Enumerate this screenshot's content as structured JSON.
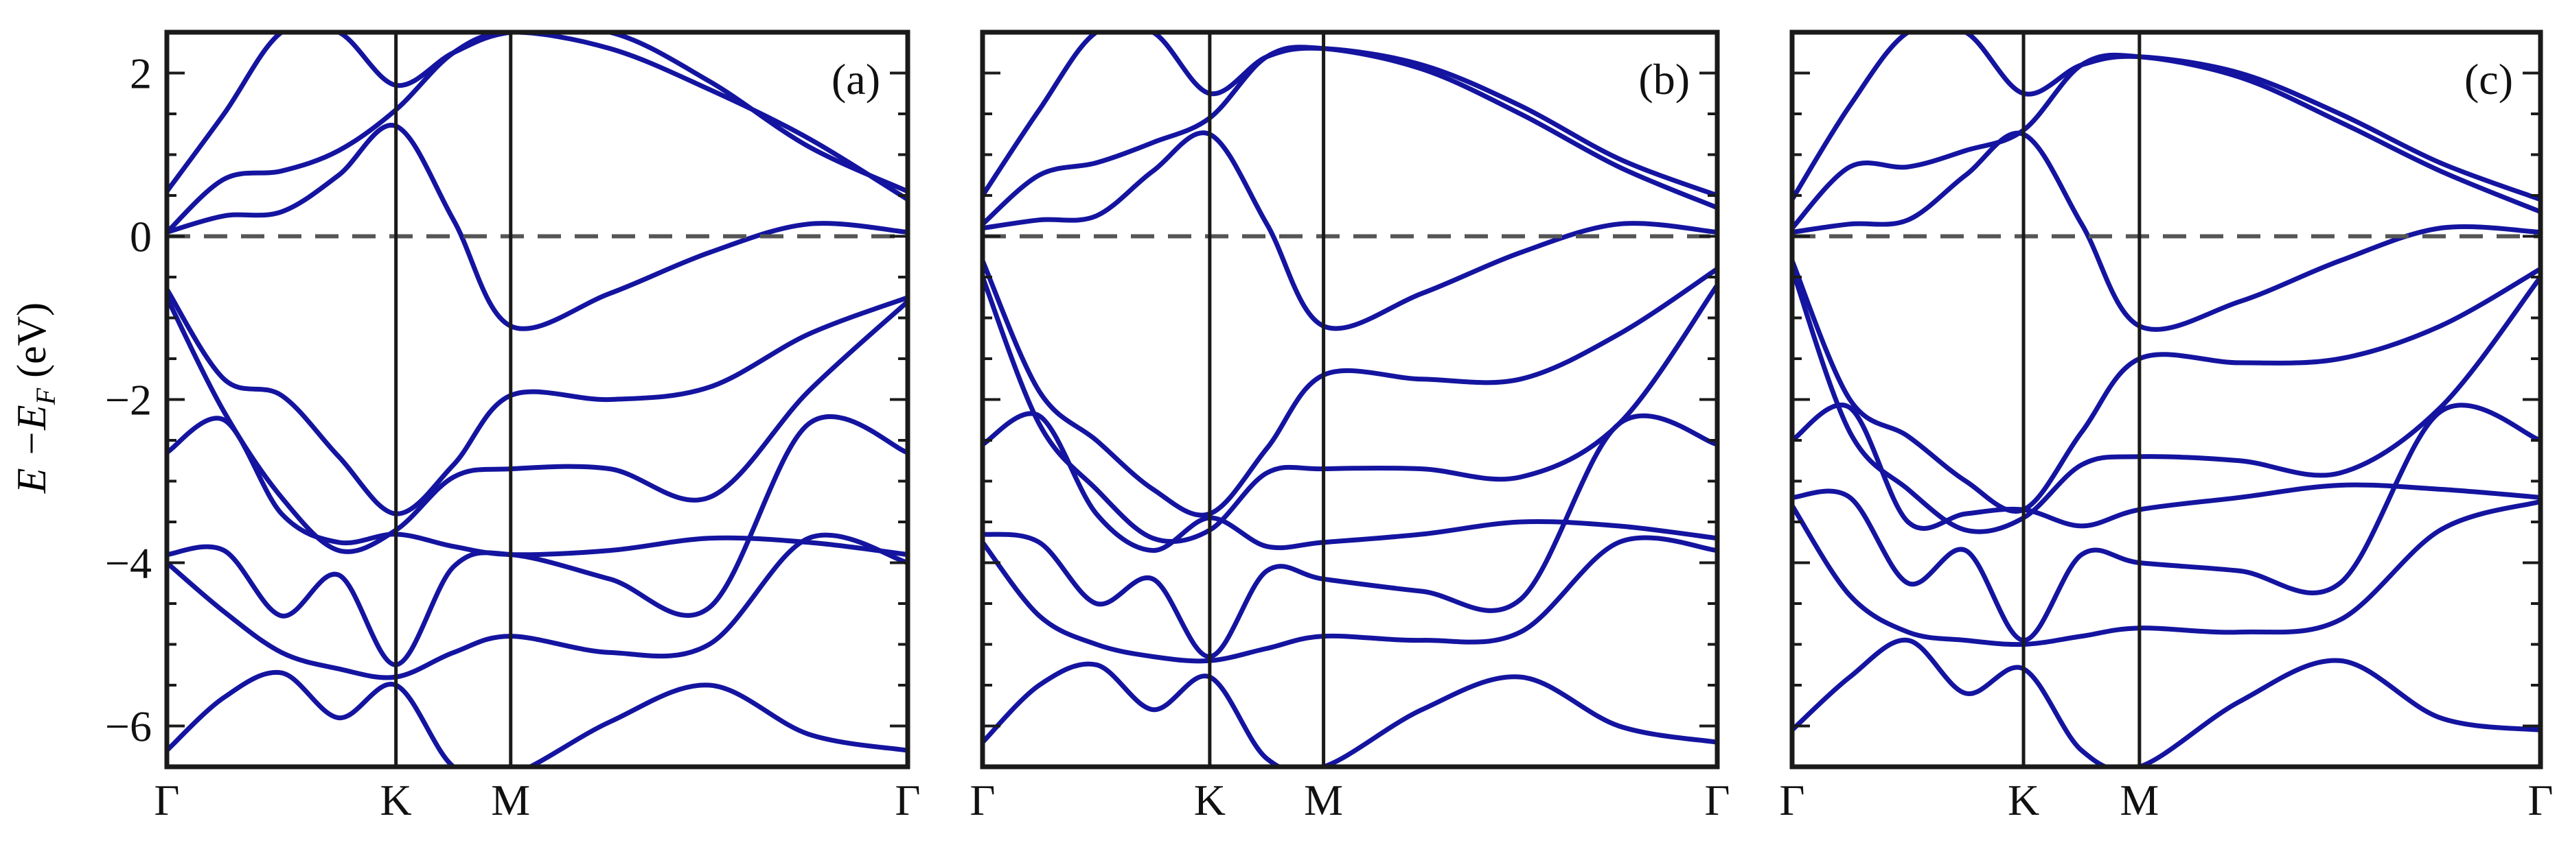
{
  "figure": {
    "ylabel_main": "E −E",
    "ylabel_sub": "F",
    "ylabel_unit": " (eV)"
  },
  "chart_data": [
    {
      "type": "line",
      "panel_label": "(a)",
      "x_ticks": [
        {
          "pos": 0,
          "label": "Γ"
        },
        {
          "pos": 0.577,
          "label": "K"
        },
        {
          "pos": 0.866,
          "label": "M"
        },
        {
          "pos": 1.866,
          "label": "Γ"
        }
      ],
      "xlim": [
        0,
        1.866
      ],
      "ylim": [
        -6.5,
        2.5
      ],
      "y_ticks": [
        2,
        0,
        -2,
        -4,
        -6
      ],
      "y_tick_labels": [
        "2",
        "0",
        "−2",
        "−4",
        "−6"
      ],
      "fermi_level": 0,
      "line_color": "#1414a0",
      "fermi_color": "#555555",
      "x": [
        0,
        0.144,
        0.289,
        0.433,
        0.577,
        0.722,
        0.866,
        1.116,
        1.366,
        1.616,
        1.866
      ],
      "bands": [
        [
          0.55,
          1.5,
          2.5,
          2.5,
          1.85,
          2.25,
          2.5,
          2.5,
          1.9,
          1.1,
          0.55
        ],
        [
          0.05,
          0.7,
          0.8,
          1.05,
          1.55,
          2.25,
          2.5,
          2.3,
          1.8,
          1.2,
          0.45
        ],
        [
          0.05,
          0.25,
          0.3,
          0.75,
          1.35,
          0.2,
          -1.1,
          -0.7,
          -0.2,
          0.15,
          0.05
        ],
        [
          -0.65,
          -1.75,
          -1.95,
          -2.7,
          -3.4,
          -2.8,
          -1.95,
          -2.0,
          -1.85,
          -1.2,
          -0.75
        ],
        [
          -0.75,
          -2.15,
          -3.2,
          -3.85,
          -3.6,
          -2.95,
          -2.85,
          -2.85,
          -3.2,
          -1.9,
          -0.8
        ],
        [
          -2.65,
          -2.25,
          -3.4,
          -3.75,
          -3.65,
          -3.8,
          -3.9,
          -3.85,
          -3.7,
          -3.75,
          -3.9
        ],
        [
          -3.9,
          -3.85,
          -4.65,
          -4.15,
          -5.25,
          -4.05,
          -3.9,
          -4.2,
          -4.55,
          -2.3,
          -2.65
        ],
        [
          -4.0,
          -4.6,
          -5.1,
          -5.3,
          -5.4,
          -5.1,
          -4.9,
          -5.1,
          -5.0,
          -3.7,
          -4.0
        ],
        [
          -6.3,
          -5.65,
          -5.35,
          -5.9,
          -5.5,
          -6.5,
          -6.6,
          -5.95,
          -5.5,
          -6.1,
          -6.3
        ]
      ]
    },
    {
      "type": "line",
      "panel_label": "(b)",
      "x_ticks": [
        {
          "pos": 0,
          "label": "Γ"
        },
        {
          "pos": 0.577,
          "label": "K"
        },
        {
          "pos": 0.866,
          "label": "M"
        },
        {
          "pos": 1.866,
          "label": "Γ"
        }
      ],
      "xlim": [
        0,
        1.866
      ],
      "ylim": [
        -6.5,
        2.5
      ],
      "y_ticks": [
        2,
        0,
        -2,
        -4,
        -6
      ],
      "y_tick_labels": [
        "2",
        "0",
        "−2",
        "−4",
        "−6"
      ],
      "fermi_level": 0,
      "line_color": "#1414a0",
      "fermi_color": "#555555",
      "x": [
        0,
        0.144,
        0.289,
        0.433,
        0.577,
        0.722,
        0.866,
        1.116,
        1.366,
        1.616,
        1.866
      ],
      "bands": [
        [
          0.5,
          1.55,
          2.5,
          2.5,
          1.75,
          2.2,
          2.3,
          2.1,
          1.6,
          0.95,
          0.5
        ],
        [
          0.15,
          0.75,
          0.9,
          1.15,
          1.45,
          2.2,
          2.3,
          2.05,
          1.5,
          0.85,
          0.35
        ],
        [
          0.1,
          0.2,
          0.25,
          0.8,
          1.25,
          0.15,
          -1.1,
          -0.7,
          -0.2,
          0.15,
          0.05
        ],
        [
          -0.3,
          -1.9,
          -2.5,
          -3.1,
          -3.4,
          -2.6,
          -1.7,
          -1.75,
          -1.75,
          -1.2,
          -0.4
        ],
        [
          -0.5,
          -2.3,
          -3.1,
          -3.7,
          -3.6,
          -2.9,
          -2.85,
          -2.85,
          -2.95,
          -2.3,
          -0.6
        ],
        [
          -2.55,
          -2.2,
          -3.4,
          -3.85,
          -3.45,
          -3.8,
          -3.75,
          -3.65,
          -3.5,
          -3.55,
          -3.7
        ],
        [
          -3.65,
          -3.75,
          -4.5,
          -4.2,
          -5.15,
          -4.1,
          -4.2,
          -4.35,
          -4.45,
          -2.3,
          -2.55
        ],
        [
          -3.75,
          -4.65,
          -5.0,
          -5.15,
          -5.2,
          -5.05,
          -4.9,
          -4.95,
          -4.85,
          -3.75,
          -3.85
        ],
        [
          -6.2,
          -5.5,
          -5.25,
          -5.8,
          -5.4,
          -6.4,
          -6.5,
          -5.8,
          -5.4,
          -6.0,
          -6.2
        ]
      ]
    },
    {
      "type": "line",
      "panel_label": "(c)",
      "x_ticks": [
        {
          "pos": 0,
          "label": "Γ"
        },
        {
          "pos": 0.577,
          "label": "K"
        },
        {
          "pos": 0.866,
          "label": "M"
        },
        {
          "pos": 1.866,
          "label": "Γ"
        }
      ],
      "xlim": [
        0,
        1.866
      ],
      "ylim": [
        -6.5,
        2.5
      ],
      "y_ticks": [
        2,
        0,
        -2,
        -4,
        -6
      ],
      "y_tick_labels": [
        "2",
        "0",
        "−2",
        "−4",
        "−6"
      ],
      "fermi_level": 0,
      "line_color": "#1414a0",
      "fermi_color": "#555555",
      "x": [
        0,
        0.144,
        0.289,
        0.433,
        0.577,
        0.722,
        0.866,
        1.116,
        1.366,
        1.616,
        1.866
      ],
      "bands": [
        [
          0.45,
          1.6,
          2.5,
          2.5,
          1.75,
          2.1,
          2.2,
          2.0,
          1.5,
          0.9,
          0.45
        ],
        [
          0.1,
          0.85,
          0.85,
          1.05,
          1.3,
          2.1,
          2.2,
          1.95,
          1.4,
          0.8,
          0.3
        ],
        [
          0.05,
          0.15,
          0.2,
          0.75,
          1.25,
          0.15,
          -1.1,
          -0.8,
          -0.3,
          0.1,
          0.05
        ],
        [
          -0.3,
          -2.0,
          -2.45,
          -3.0,
          -3.35,
          -2.4,
          -1.5,
          -1.55,
          -1.5,
          -1.1,
          -0.4
        ],
        [
          -0.4,
          -2.4,
          -3.1,
          -3.6,
          -3.45,
          -2.8,
          -2.7,
          -2.75,
          -2.9,
          -2.1,
          -0.5
        ],
        [
          -2.5,
          -2.1,
          -3.5,
          -3.4,
          -3.35,
          -3.55,
          -3.35,
          -3.2,
          -3.05,
          -3.1,
          -3.2
        ],
        [
          -3.2,
          -3.2,
          -4.25,
          -3.85,
          -4.95,
          -3.9,
          -4.0,
          -4.1,
          -4.25,
          -2.15,
          -2.5
        ],
        [
          -3.3,
          -4.4,
          -4.85,
          -4.95,
          -5.0,
          -4.9,
          -4.8,
          -4.85,
          -4.7,
          -3.6,
          -3.25
        ],
        [
          -6.05,
          -5.4,
          -4.95,
          -5.6,
          -5.3,
          -6.3,
          -6.5,
          -5.7,
          -5.2,
          -5.9,
          -6.05
        ]
      ]
    }
  ]
}
